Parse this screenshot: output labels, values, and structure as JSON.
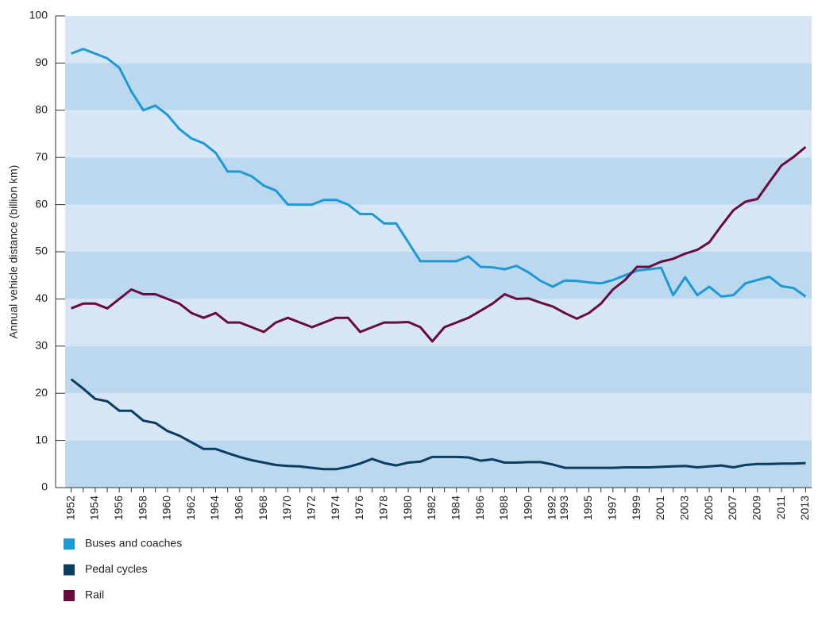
{
  "chart_data": {
    "type": "line",
    "ylabel": "Annual vehicle distance (billion km)",
    "categories": [
      "1952",
      null,
      "1954",
      null,
      "1956",
      null,
      "1958",
      null,
      "1960",
      null,
      "1962",
      null,
      "1964",
      null,
      "1966",
      null,
      "1968",
      null,
      "1970",
      null,
      "1972",
      null,
      "1974",
      null,
      "1976",
      null,
      "1978",
      null,
      "1980",
      null,
      "1982",
      null,
      "1984",
      null,
      "1986",
      null,
      "1988",
      null,
      "1990",
      null,
      "1992",
      "1993",
      null,
      "1995",
      null,
      "1997",
      null,
      "1999",
      null,
      "2001",
      null,
      "2003",
      null,
      "2005",
      null,
      "2007",
      null,
      "2009",
      null,
      "2011",
      null,
      "2013"
    ],
    "series": [
      {
        "name": "Buses and coaches",
        "color": "#1a9ad6",
        "values": [
          92,
          93,
          92,
          91,
          89,
          84,
          80,
          81,
          79,
          76,
          74,
          73,
          71,
          67,
          67,
          66,
          64,
          63,
          60,
          60,
          60,
          61,
          61,
          60,
          58,
          58,
          56,
          56,
          52,
          48,
          48,
          48,
          48,
          49,
          46.8,
          46.7,
          46.3,
          47,
          45.6,
          43.8,
          42.6,
          43.9,
          43.8,
          43.5,
          43.3,
          44,
          45,
          46,
          46.3,
          46.6,
          40.8,
          44.6,
          40.8,
          42.6,
          40.5,
          40.8,
          43.3,
          44,
          44.7,
          42.7,
          42.3,
          40.5
        ]
      },
      {
        "name": "Pedal cycles",
        "color": "#0a3d62",
        "values": [
          23,
          21,
          18.8,
          18.3,
          16.3,
          16.3,
          14.2,
          13.7,
          12,
          11,
          9.6,
          8.2,
          8.2,
          7.3,
          6.5,
          5.8,
          5.3,
          4.8,
          4.6,
          4.5,
          4.2,
          3.9,
          3.9,
          4.4,
          5.1,
          6.1,
          5.2,
          4.7,
          5.3,
          5.5,
          6.5,
          6.5,
          6.5,
          6.4,
          5.7,
          6,
          5.3,
          5.3,
          5.4,
          5.4,
          4.9,
          4.2,
          4.2,
          4.2,
          4.2,
          4.2,
          4.3,
          4.3,
          4.3,
          4.4,
          4.5,
          4.6,
          4.3,
          4.5,
          4.7,
          4.3,
          4.8,
          5,
          5,
          5.1,
          5.1,
          5.2
        ]
      },
      {
        "name": "Rail",
        "color": "#6b0a3e",
        "values": [
          38,
          39,
          39,
          38,
          40,
          42,
          41,
          41,
          40,
          39,
          37,
          36,
          37,
          35,
          35,
          34,
          33,
          35,
          36,
          35,
          34,
          35,
          36,
          36,
          33,
          34,
          35,
          35,
          35.1,
          34,
          31,
          34,
          35,
          36,
          37.5,
          39,
          41,
          40,
          40.1,
          39.2,
          38.4,
          37,
          35.8,
          37,
          39,
          42,
          44,
          46.8,
          46.8,
          47.9,
          48.5,
          49.6,
          50.4,
          52,
          55.5,
          58.8,
          60.6,
          61.2,
          64.8,
          68.3,
          70.1,
          72.2
        ]
      }
    ],
    "ylim": [
      0,
      100
    ],
    "yticks": [
      0,
      10,
      20,
      30,
      40,
      50,
      60,
      70,
      80,
      90,
      100
    ],
    "band_colors": [
      "#bcd8ee",
      "#d6e6f4"
    ],
    "legend": "bottom-left"
  }
}
